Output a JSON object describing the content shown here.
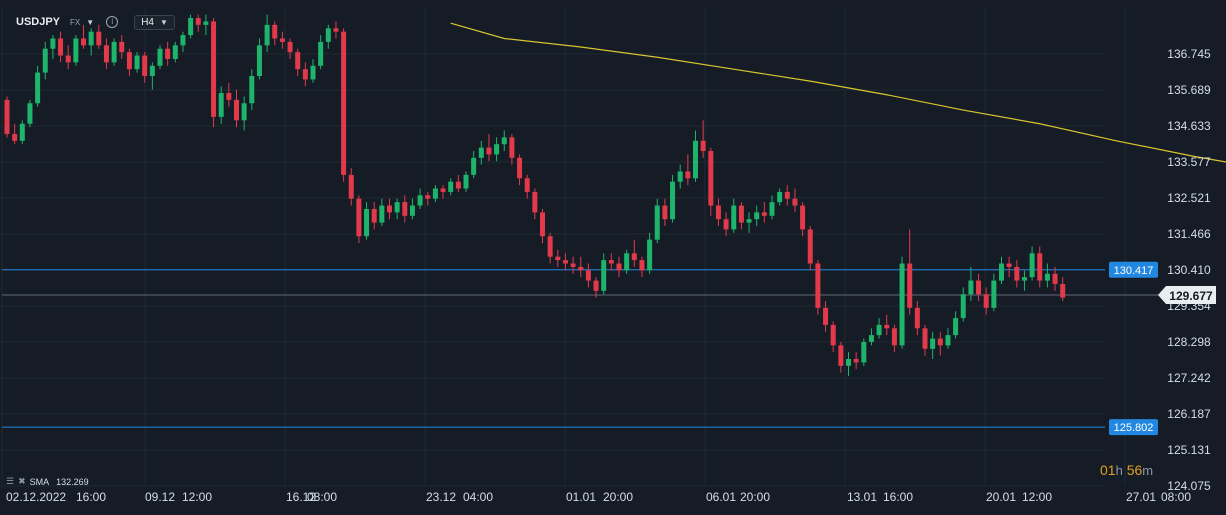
{
  "header": {
    "symbol": "USDJPY",
    "market": "FX",
    "timeframe": "H4"
  },
  "indicator": {
    "name": "SMA",
    "value": "132.269",
    "color": "#d9c531"
  },
  "countdown": {
    "hours": "01",
    "hours_unit": "h",
    "minutes": "56",
    "minutes_unit": "m"
  },
  "colors": {
    "background": "#151c25",
    "bull": "#1fb46b",
    "bear": "#e23a4a",
    "hline": "#2287e0",
    "current_price_line": "#5f6a76",
    "sma": "#d9c531"
  },
  "chart_data": {
    "type": "candlestick",
    "symbol": "USDJPY",
    "timeframe": "H4",
    "y_axis": {
      "ticks": [
        "136.745",
        "135.689",
        "134.633",
        "133.577",
        "132.521",
        "131.466",
        "130.410",
        "129.354",
        "128.298",
        "127.242",
        "126.187",
        "125.131",
        "124.075"
      ],
      "range": [
        123.9,
        137.9
      ]
    },
    "x_axis": {
      "tick_labels": [
        "02.12.2022",
        "16:00",
        "09.12",
        "12:00",
        "16.12",
        "08:00",
        "23.12",
        "04:00",
        "01.01",
        "20:00",
        "06.01",
        "20:00",
        "13.01",
        "16:00",
        "20.01",
        "12:00",
        "27.01",
        "08:00"
      ],
      "ticks": [
        {
          "date": "02.12.2022",
          "time": "16:00"
        },
        {
          "date": "09.12",
          "time": "12:00"
        },
        {
          "date": "16.12",
          "time": "08:00"
        },
        {
          "date": "23.12",
          "time": "04:00"
        },
        {
          "date": "01.01",
          "time": "20:00"
        },
        {
          "date": "06.01",
          "time": "20:00"
        },
        {
          "date": "13.01",
          "time": "16:00"
        },
        {
          "date": "20.01",
          "time": "12:00"
        },
        {
          "date": "27.01",
          "time": "08:00"
        }
      ]
    },
    "horizontal_lines": [
      {
        "price": 130.417,
        "label": "130.417"
      },
      {
        "price": 125.802,
        "label": "125.802"
      }
    ],
    "current_price": {
      "price": 129.677,
      "label": "129.677"
    },
    "sma_period_value": 132.269,
    "sma_curve": [
      [
        58,
        137.65
      ],
      [
        65,
        137.2
      ],
      [
        75,
        136.95
      ],
      [
        85,
        136.65
      ],
      [
        95,
        136.3
      ],
      [
        105,
        135.95
      ],
      [
        115,
        135.55
      ],
      [
        125,
        135.1
      ],
      [
        135,
        134.7
      ],
      [
        145,
        134.2
      ],
      [
        155,
        133.75
      ],
      [
        165,
        133.35
      ],
      [
        175,
        133.0
      ],
      [
        185,
        132.65
      ],
      [
        195,
        132.35
      ],
      [
        199,
        132.22
      ]
    ],
    "candles": [
      [
        0,
        135.4,
        135.5,
        134.3,
        134.4
      ],
      [
        1,
        134.4,
        134.7,
        134.1,
        134.2
      ],
      [
        2,
        134.2,
        134.8,
        134.1,
        134.7
      ],
      [
        3,
        134.7,
        135.4,
        134.6,
        135.3
      ],
      [
        4,
        135.3,
        136.4,
        135.2,
        136.2
      ],
      [
        5,
        136.2,
        137.1,
        136.0,
        136.9
      ],
      [
        6,
        136.9,
        137.3,
        136.6,
        137.2
      ],
      [
        7,
        137.2,
        137.4,
        136.5,
        136.7
      ],
      [
        8,
        136.7,
        137.0,
        136.3,
        136.5
      ],
      [
        9,
        136.5,
        137.3,
        136.4,
        137.2
      ],
      [
        10,
        137.2,
        137.6,
        136.9,
        137.0
      ],
      [
        11,
        137.0,
        137.5,
        136.7,
        137.4
      ],
      [
        12,
        137.4,
        137.6,
        136.9,
        137.0
      ],
      [
        13,
        137.0,
        137.2,
        136.3,
        136.5
      ],
      [
        14,
        136.5,
        137.2,
        136.4,
        137.1
      ],
      [
        15,
        137.1,
        137.3,
        136.6,
        136.8
      ],
      [
        16,
        136.8,
        136.9,
        136.1,
        136.3
      ],
      [
        17,
        136.3,
        136.8,
        136.2,
        136.7
      ],
      [
        18,
        136.7,
        136.8,
        135.9,
        136.1
      ],
      [
        19,
        136.1,
        136.5,
        135.7,
        136.4
      ],
      [
        20,
        136.4,
        137.0,
        136.3,
        136.9
      ],
      [
        21,
        136.9,
        137.1,
        136.4,
        136.6
      ],
      [
        22,
        136.6,
        137.1,
        136.5,
        137.0
      ],
      [
        23,
        137.0,
        137.4,
        136.8,
        137.3
      ],
      [
        24,
        137.3,
        137.9,
        137.2,
        137.8
      ],
      [
        25,
        137.8,
        137.9,
        137.4,
        137.6
      ],
      [
        26,
        137.6,
        137.9,
        137.3,
        137.7
      ],
      [
        27,
        137.7,
        137.8,
        134.6,
        134.9
      ],
      [
        28,
        134.9,
        135.8,
        134.7,
        135.6
      ],
      [
        29,
        135.6,
        135.9,
        135.2,
        135.4
      ],
      [
        30,
        135.4,
        135.7,
        134.6,
        134.8
      ],
      [
        31,
        134.8,
        135.5,
        134.5,
        135.3
      ],
      [
        32,
        135.3,
        136.3,
        135.1,
        136.1
      ],
      [
        33,
        136.1,
        137.2,
        136.0,
        137.0
      ],
      [
        34,
        137.0,
        137.9,
        136.8,
        137.6
      ],
      [
        35,
        137.6,
        137.7,
        137.0,
        137.2
      ],
      [
        36,
        137.2,
        137.4,
        136.9,
        137.1
      ],
      [
        37,
        137.1,
        137.2,
        136.6,
        136.8
      ],
      [
        38,
        136.8,
        136.9,
        136.1,
        136.3
      ],
      [
        39,
        136.3,
        136.5,
        135.8,
        136.0
      ],
      [
        40,
        136.0,
        136.6,
        135.9,
        136.4
      ],
      [
        41,
        136.4,
        137.3,
        136.3,
        137.1
      ],
      [
        42,
        137.1,
        137.6,
        136.9,
        137.5
      ],
      [
        43,
        137.5,
        137.7,
        137.2,
        137.4
      ],
      [
        44,
        137.4,
        137.5,
        133.0,
        133.2
      ],
      [
        45,
        133.2,
        133.4,
        132.3,
        132.5
      ],
      [
        46,
        132.5,
        132.6,
        131.2,
        131.4
      ],
      [
        47,
        131.4,
        132.4,
        131.3,
        132.2
      ],
      [
        48,
        132.2,
        132.4,
        131.6,
        131.8
      ],
      [
        49,
        131.8,
        132.5,
        131.7,
        132.3
      ],
      [
        50,
        132.3,
        132.5,
        131.9,
        132.1
      ],
      [
        51,
        132.1,
        132.5,
        131.9,
        132.4
      ],
      [
        52,
        132.4,
        132.6,
        131.8,
        132.0
      ],
      [
        53,
        132.0,
        132.5,
        131.9,
        132.3
      ],
      [
        54,
        132.3,
        132.8,
        132.2,
        132.6
      ],
      [
        55,
        132.6,
        132.7,
        132.3,
        132.5
      ],
      [
        56,
        132.5,
        132.9,
        132.4,
        132.8
      ],
      [
        57,
        132.8,
        132.9,
        132.5,
        132.7
      ],
      [
        58,
        132.7,
        133.1,
        132.6,
        133.0
      ],
      [
        59,
        133.0,
        133.2,
        132.7,
        132.8
      ],
      [
        60,
        132.8,
        133.3,
        132.7,
        133.2
      ],
      [
        61,
        133.2,
        133.9,
        133.1,
        133.7
      ],
      [
        62,
        133.7,
        134.2,
        133.5,
        134.0
      ],
      [
        63,
        134.0,
        134.4,
        133.6,
        133.8
      ],
      [
        64,
        133.8,
        134.3,
        133.6,
        134.1
      ],
      [
        65,
        134.1,
        134.5,
        133.9,
        134.3
      ],
      [
        66,
        134.3,
        134.4,
        133.5,
        133.7
      ],
      [
        67,
        133.7,
        133.8,
        132.9,
        133.1
      ],
      [
        68,
        133.1,
        133.2,
        132.5,
        132.7
      ],
      [
        69,
        132.7,
        132.8,
        131.9,
        132.1
      ],
      [
        70,
        132.1,
        132.2,
        131.2,
        131.4
      ],
      [
        71,
        131.4,
        131.5,
        130.6,
        130.8
      ],
      [
        72,
        130.8,
        131.0,
        130.5,
        130.7
      ],
      [
        73,
        130.7,
        130.9,
        130.4,
        130.6
      ],
      [
        74,
        130.6,
        130.8,
        130.3,
        130.5
      ],
      [
        75,
        130.5,
        130.8,
        130.2,
        130.4
      ],
      [
        76,
        130.4,
        130.6,
        129.9,
        130.1
      ],
      [
        77,
        130.1,
        130.2,
        129.6,
        129.8
      ],
      [
        78,
        129.8,
        130.9,
        129.7,
        130.7
      ],
      [
        79,
        130.7,
        130.9,
        130.4,
        130.6
      ],
      [
        80,
        130.6,
        130.8,
        130.2,
        130.4
      ],
      [
        81,
        130.4,
        131.0,
        130.3,
        130.9
      ],
      [
        82,
        130.9,
        131.3,
        130.5,
        130.7
      ],
      [
        83,
        130.7,
        130.8,
        130.2,
        130.4
      ],
      [
        84,
        130.4,
        131.5,
        130.3,
        131.3
      ],
      [
        85,
        131.3,
        132.5,
        131.2,
        132.3
      ],
      [
        86,
        132.3,
        132.5,
        131.7,
        131.9
      ],
      [
        87,
        131.9,
        133.2,
        131.8,
        133.0
      ],
      [
        88,
        133.0,
        133.5,
        132.8,
        133.3
      ],
      [
        89,
        133.3,
        133.8,
        132.9,
        133.1
      ],
      [
        90,
        133.1,
        134.5,
        133.0,
        134.2
      ],
      [
        91,
        134.2,
        134.8,
        133.7,
        133.9
      ],
      [
        92,
        133.9,
        134.0,
        132.0,
        132.3
      ],
      [
        93,
        132.3,
        132.5,
        131.7,
        131.9
      ],
      [
        94,
        131.9,
        132.1,
        131.4,
        131.6
      ],
      [
        95,
        131.6,
        132.5,
        131.5,
        132.3
      ],
      [
        96,
        132.3,
        132.4,
        131.6,
        131.8
      ],
      [
        97,
        131.8,
        132.1,
        131.5,
        131.9
      ],
      [
        98,
        131.9,
        132.3,
        131.7,
        132.1
      ],
      [
        99,
        132.1,
        132.4,
        131.8,
        132.0
      ],
      [
        100,
        132.0,
        132.6,
        131.9,
        132.4
      ],
      [
        101,
        132.4,
        132.8,
        132.3,
        132.7
      ],
      [
        102,
        132.7,
        132.9,
        132.3,
        132.5
      ],
      [
        103,
        132.5,
        132.8,
        132.1,
        132.3
      ],
      [
        104,
        132.3,
        132.4,
        131.4,
        131.6
      ],
      [
        105,
        131.6,
        131.7,
        130.4,
        130.6
      ],
      [
        106,
        130.6,
        130.7,
        129.1,
        129.3
      ],
      [
        107,
        129.3,
        129.5,
        128.6,
        128.8
      ],
      [
        108,
        128.8,
        128.9,
        128.0,
        128.2
      ],
      [
        109,
        128.2,
        128.3,
        127.4,
        127.6
      ],
      [
        110,
        127.6,
        128.0,
        127.3,
        127.8
      ],
      [
        111,
        127.8,
        128.0,
        127.5,
        127.7
      ],
      [
        112,
        127.7,
        128.4,
        127.6,
        128.3
      ],
      [
        113,
        128.3,
        128.7,
        128.2,
        128.5
      ],
      [
        114,
        128.5,
        129.0,
        128.4,
        128.8
      ],
      [
        115,
        128.8,
        129.1,
        128.5,
        128.7
      ],
      [
        116,
        128.7,
        128.8,
        128.0,
        128.2
      ],
      [
        117,
        128.2,
        130.8,
        128.1,
        130.6
      ],
      [
        118,
        130.6,
        131.6,
        129.1,
        129.3
      ],
      [
        119,
        129.3,
        129.5,
        128.5,
        128.7
      ],
      [
        120,
        128.7,
        128.8,
        127.9,
        128.1
      ],
      [
        121,
        128.1,
        128.6,
        127.8,
        128.4
      ],
      [
        122,
        128.4,
        128.6,
        127.9,
        128.2
      ],
      [
        123,
        128.2,
        128.7,
        128.1,
        128.5
      ],
      [
        124,
        128.5,
        129.2,
        128.4,
        129.0
      ],
      [
        125,
        129.0,
        129.9,
        128.9,
        129.7
      ],
      [
        126,
        129.7,
        130.5,
        129.5,
        130.1
      ],
      [
        127,
        130.1,
        130.3,
        129.5,
        129.7
      ],
      [
        128,
        129.7,
        129.9,
        129.1,
        129.3
      ],
      [
        129,
        129.3,
        130.3,
        129.2,
        130.1
      ],
      [
        130,
        130.1,
        130.8,
        130.0,
        130.6
      ],
      [
        131,
        130.6,
        130.8,
        130.2,
        130.5
      ],
      [
        132,
        130.5,
        130.7,
        129.9,
        130.1
      ],
      [
        133,
        130.1,
        130.4,
        129.8,
        130.2
      ],
      [
        134,
        130.2,
        131.1,
        130.1,
        130.9
      ],
      [
        135,
        130.9,
        131.1,
        129.9,
        130.1
      ],
      [
        136,
        130.1,
        130.6,
        129.9,
        130.3
      ],
      [
        137,
        130.3,
        130.5,
        129.8,
        130.0
      ],
      [
        138,
        130.0,
        130.2,
        129.5,
        129.6
      ]
    ]
  }
}
